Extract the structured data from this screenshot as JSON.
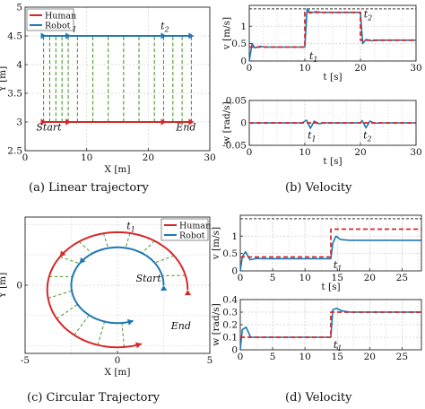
{
  "colors": {
    "human": "#d62728",
    "robot": "#1f77b4",
    "lines": "#4a9a2a",
    "limit": "#333333",
    "grid": "#d0d0d0"
  },
  "captions": {
    "a": "(a)  Linear trajectory",
    "b": "(b)  Velocity",
    "c": "(c)  Circular Trajectory",
    "d": "(d)  Velocity"
  },
  "chart_data": [
    {
      "id": "a",
      "type": "line",
      "xlabel": "X [m]",
      "ylabel": "Y [m]",
      "xlim": [
        0,
        30
      ],
      "ylim": [
        2.5,
        5
      ],
      "xticks": [
        0,
        10,
        20,
        30
      ],
      "yticks": [
        2.5,
        3,
        3.5,
        4,
        4.5,
        5
      ],
      "legend": [
        "Human",
        "Robot"
      ],
      "legend_position": "top-left",
      "grid": true,
      "series": [
        {
          "name": "Human",
          "x": [
            3,
            27
          ],
          "y": [
            3,
            3
          ]
        },
        {
          "name": "Robot",
          "x": [
            3,
            27
          ],
          "y": [
            4.5,
            4.5
          ]
        }
      ],
      "connectors_x": [
        3,
        4,
        5,
        6,
        7,
        8.5,
        11,
        13.5,
        16,
        18.5,
        21,
        22.5,
        24,
        25.5,
        27
      ],
      "annotations": [
        {
          "text": "t",
          "sub": "1",
          "x": 7,
          "y": 4.62
        },
        {
          "text": "t",
          "sub": "2",
          "x": 22,
          "y": 4.62
        },
        {
          "text": "Start",
          "x": 1.8,
          "y": 2.85
        },
        {
          "text": "End",
          "x": 24.5,
          "y": 2.85
        }
      ]
    },
    {
      "id": "b-top",
      "type": "line",
      "xlabel": "t [s]",
      "ylabel": "v [m/s]",
      "xlim": [
        0,
        30
      ],
      "ylim": [
        0,
        1.6
      ],
      "xticks": [
        0,
        10,
        20,
        30
      ],
      "yticks": [
        0,
        0.5,
        1
      ],
      "grid": true,
      "limit_y": 1.5,
      "series": [
        {
          "name": "Human",
          "style": "dashed",
          "x": [
            0,
            10,
            10,
            20,
            20,
            30
          ],
          "y": [
            0.4,
            0.4,
            1.4,
            1.4,
            0.6,
            0.6
          ]
        },
        {
          "name": "Robot",
          "x": [
            0,
            0.5,
            1,
            2,
            3,
            10,
            10.4,
            11,
            12,
            13,
            20,
            20.4,
            21,
            22,
            23,
            30
          ],
          "y": [
            0,
            0.5,
            0.38,
            0.42,
            0.4,
            0.4,
            1.5,
            1.38,
            1.42,
            1.4,
            1.4,
            0.5,
            0.62,
            0.58,
            0.6,
            0.6
          ]
        }
      ],
      "annotations": [
        {
          "text": "t",
          "sub": "1",
          "x": 10.8,
          "y": 0.05
        },
        {
          "text": "t",
          "sub": "2",
          "x": 20.6,
          "y": 1.25
        }
      ]
    },
    {
      "id": "b-bottom",
      "type": "line",
      "xlabel": "t [s]",
      "ylabel": "w [rad/s]",
      "xlim": [
        0,
        30
      ],
      "ylim": [
        -0.05,
        0.05
      ],
      "xticks": [
        0,
        10,
        20,
        30
      ],
      "yticks": [
        -0.05,
        0,
        0.05
      ],
      "grid": true,
      "series": [
        {
          "name": "Human",
          "style": "dashed",
          "x": [
            0,
            30
          ],
          "y": [
            0,
            0
          ]
        },
        {
          "name": "Robot",
          "x": [
            0,
            9.5,
            10.3,
            11,
            11.7,
            12.5,
            13.5,
            20,
            20.3,
            21,
            21.7,
            22.5,
            23.5,
            30
          ],
          "y": [
            0,
            0,
            0.006,
            -0.012,
            0.004,
            -0.002,
            0,
            0,
            0.005,
            -0.011,
            0.004,
            -0.001,
            0,
            0
          ]
        }
      ],
      "annotations": [
        {
          "text": "t",
          "sub": "1",
          "x": 10.5,
          "y": -0.035
        },
        {
          "text": "t",
          "sub": "2",
          "x": 20.5,
          "y": -0.035
        }
      ]
    },
    {
      "id": "c",
      "type": "line",
      "xlabel": "X [m]",
      "ylabel": "Y [m]",
      "xlim": [
        -5,
        5
      ],
      "ylim": [
        -4.5,
        4.5
      ],
      "xticks": [
        -5,
        0,
        5
      ],
      "yticks": [
        0
      ],
      "legend": [
        "Human",
        "Robot"
      ],
      "legend_position": "top-right",
      "grid": true,
      "human_path": {
        "cx": 0,
        "cy": -0.3,
        "r": 3.8,
        "start_deg": 0,
        "sweep_deg": -290
      },
      "robot_path": {
        "cx": 0,
        "cy": 0,
        "r": 2.5,
        "start_deg": 0,
        "sweep_deg": -290
      },
      "annotations": [
        {
          "text": "t",
          "sub": "1",
          "x": 0.5,
          "y": 3.7
        },
        {
          "text": "Start",
          "x": 1.0,
          "y": 0.25
        },
        {
          "text": "End",
          "x": 2.9,
          "y": -2.9
        }
      ]
    },
    {
      "id": "d-top",
      "type": "line",
      "xlabel": "t [s]",
      "ylabel": "v [m/s]",
      "xlim": [
        0,
        28
      ],
      "ylim": [
        0,
        1.6
      ],
      "xticks": [
        0,
        5,
        10,
        15,
        20,
        25
      ],
      "yticks": [
        0,
        0.5,
        1
      ],
      "grid": true,
      "limit_y": 1.5,
      "series": [
        {
          "name": "Human",
          "style": "dashed",
          "x": [
            0,
            14,
            14,
            28
          ],
          "y": [
            0.4,
            0.4,
            1.2,
            1.2
          ]
        },
        {
          "name": "Robot",
          "x": [
            0,
            0.3,
            0.8,
            1.5,
            2.5,
            3.5,
            14,
            14.3,
            14.8,
            15.5,
            17,
            28
          ],
          "y": [
            0,
            0.4,
            0.55,
            0.32,
            0.36,
            0.35,
            0.35,
            0.8,
            1.0,
            0.9,
            0.88,
            0.88
          ]
        }
      ],
      "annotations": [
        {
          "text": "t",
          "sub": "1",
          "x": 14.4,
          "y": 0.08
        }
      ]
    },
    {
      "id": "d-bottom",
      "type": "line",
      "xlabel": "",
      "ylabel": "w [rad/s]",
      "xlim": [
        0,
        28
      ],
      "ylim": [
        0,
        0.4
      ],
      "xticks": [
        0,
        5,
        10,
        15,
        20,
        25
      ],
      "yticks": [
        0,
        0.1,
        0.2,
        0.3,
        0.4
      ],
      "grid": true,
      "series": [
        {
          "name": "Human",
          "style": "dashed",
          "x": [
            0,
            14,
            14,
            28
          ],
          "y": [
            0.1,
            0.1,
            0.3,
            0.3
          ]
        },
        {
          "name": "Robot",
          "x": [
            0,
            0.3,
            0.9,
            1.6,
            2.6,
            3.5,
            14,
            14.3,
            14.9,
            15.7,
            17,
            28
          ],
          "y": [
            0,
            0.16,
            0.18,
            0.1,
            0.1,
            0.1,
            0.1,
            0.32,
            0.33,
            0.31,
            0.3,
            0.3
          ]
        }
      ],
      "annotations": [
        {
          "text": "t",
          "sub": "1",
          "x": 14.4,
          "y": 0.015
        }
      ]
    }
  ]
}
